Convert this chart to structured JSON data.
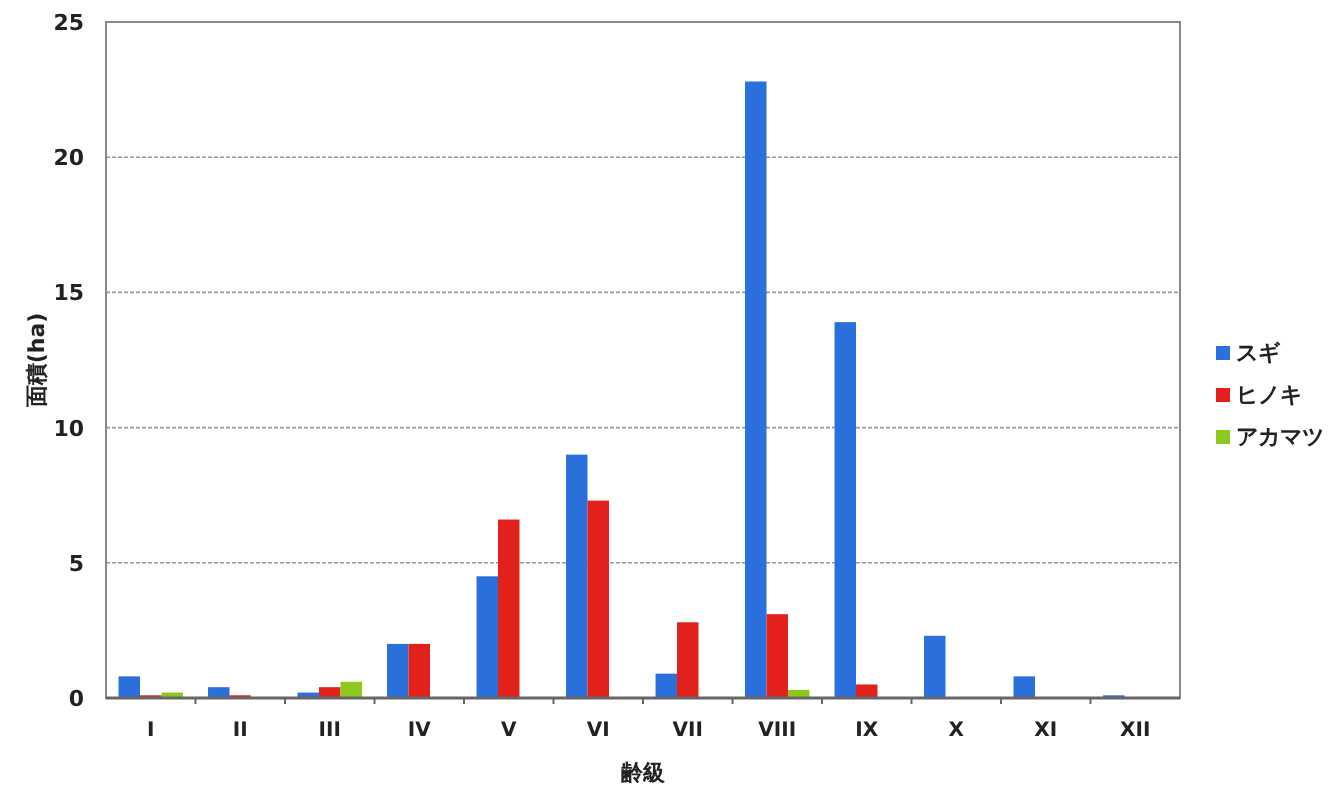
{
  "chart_data": {
    "type": "bar",
    "xlabel": "齢級",
    "ylabel": "面積(ha)",
    "categories": [
      "I",
      "II",
      "III",
      "IV",
      "V",
      "VI",
      "VII",
      "VIII",
      "IX",
      "X",
      "XI",
      "XII"
    ],
    "series": [
      {
        "name": "スギ",
        "color": "#2a6fdc",
        "values": [
          0.8,
          0.4,
          0.2,
          2.0,
          4.5,
          9.0,
          0.9,
          22.8,
          13.9,
          2.3,
          0.8,
          0.1
        ]
      },
      {
        "name": "ヒノキ",
        "color": "#e2201c",
        "values": [
          0.1,
          0.1,
          0.4,
          2.0,
          6.6,
          7.3,
          2.8,
          3.1,
          0.5,
          0,
          0,
          0
        ]
      },
      {
        "name": "アカマツ",
        "color": "#8cc81e",
        "values": [
          0.2,
          0,
          0.6,
          0,
          0,
          0,
          0,
          0.3,
          null,
          0,
          0,
          0
        ]
      }
    ],
    "ylim": [
      0,
      25
    ],
    "yticks": [
      0,
      5,
      10,
      15,
      20,
      25
    ],
    "grid": "y",
    "legend": "right"
  }
}
